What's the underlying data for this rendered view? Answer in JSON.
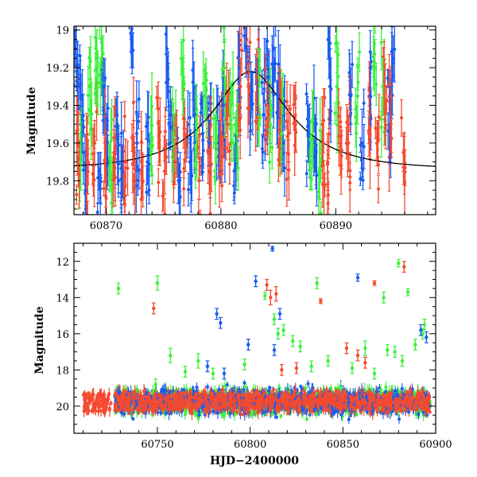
{
  "chart_data": [
    {
      "type": "scatter",
      "panel": "top",
      "title": "",
      "xlabel": "",
      "ylabel": "Magnitude",
      "xlim": [
        60867.2,
        60898.7
      ],
      "ylim": [
        19.98,
        18.98
      ],
      "y_inverted": true,
      "x_ticks": [
        60870,
        60880,
        60890
      ],
      "y_ticks": [
        19,
        19.2,
        19.4,
        19.6,
        19.8
      ],
      "y_tick_labels": [
        "19",
        "19.2",
        "19.4",
        "19.6",
        "19.8"
      ],
      "grid": false,
      "colors": {
        "red": "#f44a30",
        "green": "#3df03d",
        "blue": "#1a5cf0",
        "model": "#000000"
      },
      "model_curve": {
        "description": "single-lens microlensing-style black curve",
        "baseline_mag": 19.74,
        "peak_mag": 19.22,
        "t0": 60882.6,
        "tE": 7.0
      },
      "series": [
        {
          "color": "blue",
          "points": [
            [
              60867.3,
              19.1,
              0.1
            ],
            [
              60867.6,
              19.3,
              0.12
            ],
            [
              60867.9,
              19.55,
              0.1
            ],
            [
              60868.2,
              19.85,
              0.12
            ],
            [
              60869.4,
              19.75,
              0.1
            ],
            [
              60869.8,
              19.3,
              0.15
            ],
            [
              60870.1,
              19.6,
              0.12
            ],
            [
              60871.0,
              19.7,
              0.12
            ],
            [
              60871.4,
              19.75,
              0.14
            ],
            [
              60872.2,
              19.05,
              0.15
            ],
            [
              60872.7,
              19.6,
              0.15
            ],
            [
              60873.6,
              19.7,
              0.12
            ],
            [
              60875.3,
              19.1,
              0.18
            ],
            [
              60875.6,
              19.45,
              0.15
            ],
            [
              60876.3,
              19.8,
              0.12
            ],
            [
              60877.3,
              19.7,
              0.12
            ],
            [
              60877.7,
              19.45,
              0.15
            ],
            [
              60878.4,
              19.55,
              0.2
            ],
            [
              60879.0,
              19.6,
              0.12
            ],
            [
              60879.8,
              19.6,
              0.12
            ],
            [
              60880.2,
              19.4,
              0.15
            ],
            [
              60881.3,
              19.7,
              0.15
            ],
            [
              60881.6,
              19.2,
              0.18
            ],
            [
              60882.2,
              19.1,
              0.15
            ],
            [
              60882.6,
              19.35,
              0.18
            ],
            [
              60883.2,
              19.3,
              0.15
            ],
            [
              60883.7,
              19.45,
              0.12
            ],
            [
              60884.1,
              19.25,
              0.15
            ],
            [
              60884.6,
              19.1,
              0.15
            ],
            [
              60885.0,
              19.35,
              0.12
            ],
            [
              60885.4,
              19.6,
              0.15
            ],
            [
              60887.6,
              19.55,
              0.15
            ],
            [
              60888.2,
              19.6,
              0.15
            ],
            [
              60889.5,
              19.3,
              0.2
            ],
            [
              60891.3,
              19.35,
              0.15
            ],
            [
              60892.3,
              19.6,
              0.18
            ],
            [
              60893.0,
              19.35,
              0.15
            ],
            [
              60894.7,
              19.5,
              0.2
            ],
            [
              60895.0,
              19.15,
              0.12
            ]
          ]
        },
        {
          "color": "green",
          "points": [
            [
              60867.8,
              19.7,
              0.15
            ],
            [
              60868.6,
              19.3,
              0.15
            ],
            [
              60869.2,
              19.2,
              0.2
            ],
            [
              60869.6,
              19.05,
              0.15
            ],
            [
              60870.4,
              19.7,
              0.15
            ],
            [
              60873.9,
              19.55,
              0.2
            ],
            [
              60875.9,
              19.6,
              0.15
            ],
            [
              60876.7,
              19.3,
              0.15
            ],
            [
              60877.9,
              19.5,
              0.15
            ],
            [
              60878.6,
              19.35,
              0.12
            ],
            [
              60879.5,
              19.6,
              0.15
            ],
            [
              60880.3,
              19.2,
              0.15
            ],
            [
              60880.9,
              19.4,
              0.12
            ],
            [
              60881.4,
              19.55,
              0.15
            ],
            [
              60883.3,
              19.25,
              0.15
            ],
            [
              60884.3,
              19.5,
              0.15
            ],
            [
              60885.3,
              19.55,
              0.15
            ],
            [
              60887.9,
              19.7,
              0.15
            ],
            [
              60888.6,
              19.75,
              0.15
            ],
            [
              60890.1,
              19.3,
              0.18
            ],
            [
              60891.9,
              19.35,
              0.15
            ],
            [
              60893.4,
              19.2,
              0.15
            ],
            [
              60894.1,
              19.3,
              0.15
            ]
          ]
        },
        {
          "color": "red",
          "points": [
            [
              60867.5,
              19.65,
              0.12
            ],
            [
              60868.4,
              19.75,
              0.12
            ],
            [
              60869.0,
              19.6,
              0.12
            ],
            [
              60869.9,
              19.7,
              0.1
            ],
            [
              60870.7,
              19.65,
              0.12
            ],
            [
              60871.7,
              19.7,
              0.12
            ],
            [
              60872.4,
              19.6,
              0.12
            ],
            [
              60873.1,
              19.7,
              0.1
            ],
            [
              60874.6,
              19.6,
              0.12
            ],
            [
              60875.1,
              19.75,
              0.12
            ],
            [
              60876.0,
              19.7,
              0.12
            ],
            [
              60876.9,
              19.65,
              0.1
            ],
            [
              60878.1,
              19.8,
              0.1
            ],
            [
              60879.0,
              19.75,
              0.12
            ],
            [
              60880.0,
              19.6,
              0.12
            ],
            [
              60880.6,
              19.5,
              0.15
            ],
            [
              60881.7,
              19.3,
              0.15
            ],
            [
              60882.4,
              19.3,
              0.12
            ],
            [
              60883.1,
              19.25,
              0.12
            ],
            [
              60884.0,
              19.4,
              0.12
            ],
            [
              60885.1,
              19.6,
              0.12
            ],
            [
              60885.9,
              19.55,
              0.15
            ],
            [
              60886.5,
              19.5,
              0.15
            ],
            [
              60888.9,
              19.6,
              0.12
            ],
            [
              60889.3,
              19.7,
              0.15
            ],
            [
              60890.4,
              19.65,
              0.12
            ],
            [
              60891.1,
              19.6,
              0.15
            ],
            [
              60892.9,
              19.55,
              0.12
            ],
            [
              60893.6,
              19.6,
              0.12
            ],
            [
              60894.3,
              19.3,
              0.12
            ],
            [
              60894.8,
              19.5,
              0.15
            ],
            [
              60895.9,
              19.65,
              0.1
            ]
          ]
        }
      ]
    },
    {
      "type": "scatter",
      "panel": "bottom",
      "title": "",
      "xlabel": "HJD−2400000",
      "ylabel": "Magnitude",
      "xlim": [
        60705,
        60900
      ],
      "ylim": [
        21.5,
        11
      ],
      "y_inverted": true,
      "x_ticks": [
        60750,
        60800,
        60850,
        60900
      ],
      "y_ticks": [
        12,
        14,
        16,
        18,
        20
      ],
      "grid": false,
      "colors": {
        "red": "#f44a30",
        "green": "#3df03d",
        "blue": "#1a5cf0"
      },
      "dense_band": {
        "description": "dense cluster of blue, green and red points with error bars",
        "red_early": {
          "x_range": [
            60710,
            60725
          ],
          "mag_range": [
            19.3,
            20.3
          ]
        },
        "main": {
          "x_range": [
            60727,
            60897
          ],
          "mag_range": [
            18.8,
            20.9
          ]
        }
      },
      "series": [
        {
          "color": "green",
          "points": [
            [
              60729,
              13.5,
              0.3
            ],
            [
              60750,
              13.2,
              0.4
            ],
            [
              60749,
              18.8,
              0.3
            ],
            [
              60757,
              17.2,
              0.4
            ],
            [
              60765,
              18.1,
              0.3
            ],
            [
              60772,
              17.5,
              0.4
            ],
            [
              60780,
              18.2,
              0.3
            ],
            [
              60797,
              17.7,
              0.3
            ],
            [
              60808,
              13.9,
              0.2
            ],
            [
              60813,
              15.2,
              0.3
            ],
            [
              60815,
              16.0,
              0.3
            ],
            [
              60818,
              15.8,
              0.3
            ],
            [
              60823,
              16.4,
              0.3
            ],
            [
              60827,
              16.7,
              0.3
            ],
            [
              60833,
              17.8,
              0.3
            ],
            [
              60836,
              13.2,
              0.3
            ],
            [
              60842,
              17.5,
              0.3
            ],
            [
              60855,
              17.9,
              0.3
            ],
            [
              60862,
              16.8,
              0.4
            ],
            [
              60867,
              18.2,
              0.3
            ],
            [
              60872,
              14.0,
              0.3
            ],
            [
              60874,
              16.9,
              0.3
            ],
            [
              60878,
              17.0,
              0.3
            ],
            [
              60880,
              12.1,
              0.2
            ],
            [
              60882,
              17.5,
              0.3
            ],
            [
              60885,
              13.7,
              0.2
            ],
            [
              60889,
              16.6,
              0.3
            ],
            [
              60893,
              16.0,
              0.3
            ],
            [
              60894,
              15.5,
              0.3
            ]
          ]
        },
        {
          "color": "blue",
          "points": [
            [
              60777,
              17.8,
              0.3
            ],
            [
              60782,
              14.9,
              0.3
            ],
            [
              60784,
              15.4,
              0.3
            ],
            [
              60786,
              18.2,
              0.3
            ],
            [
              60799,
              16.6,
              0.3
            ],
            [
              60803,
              13.1,
              0.3
            ],
            [
              60812,
              11.3,
              0.1
            ],
            [
              60813,
              16.9,
              0.3
            ],
            [
              60816,
              14.9,
              0.3
            ],
            [
              60858,
              12.9,
              0.2
            ],
            [
              60892,
              15.8,
              0.3
            ],
            [
              60895,
              16.2,
              0.3
            ]
          ]
        },
        {
          "color": "red",
          "points": [
            [
              60748,
              14.6,
              0.3
            ],
            [
              60809,
              13.3,
              0.3
            ],
            [
              60811,
              14.0,
              0.4
            ],
            [
              60814,
              13.8,
              0.4
            ],
            [
              60817,
              18.0,
              0.3
            ],
            [
              60825,
              17.9,
              0.3
            ],
            [
              60838,
              14.2,
              0.1
            ],
            [
              60852,
              16.8,
              0.3
            ],
            [
              60858,
              17.2,
              0.3
            ],
            [
              60862,
              17.6,
              0.3
            ],
            [
              60867,
              13.2,
              0.1
            ],
            [
              60883,
              12.3,
              0.3
            ]
          ]
        }
      ]
    }
  ]
}
